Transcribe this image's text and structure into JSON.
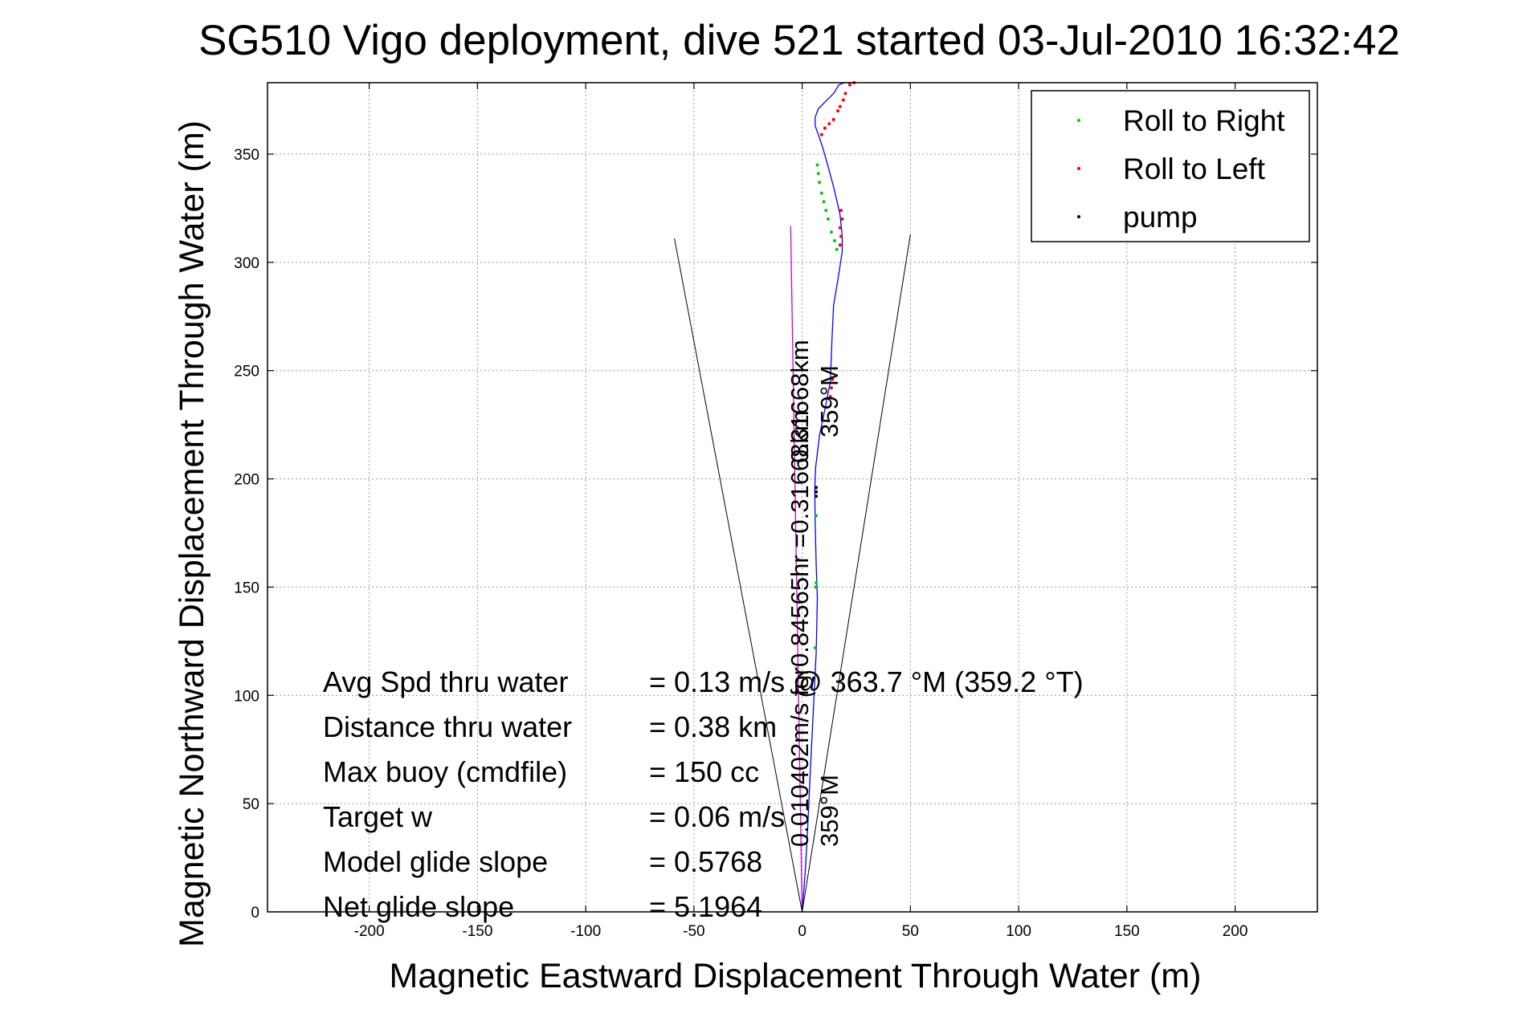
{
  "chart_data": {
    "type": "line",
    "title": "SG510 Vigo deployment, dive 521 started 03-Jul-2010 16:32:42",
    "xlabel": "Magnetic Eastward Displacement Through Water (m)",
    "ylabel": "Magnetic Northward Displacement Through Water (m)",
    "xlim": [
      -247,
      238
    ],
    "ylim": [
      0,
      383
    ],
    "x_ticks": [
      -200,
      -150,
      -100,
      -50,
      0,
      50,
      100,
      150,
      200
    ],
    "y_ticks": [
      0,
      50,
      100,
      150,
      200,
      250,
      300,
      350
    ],
    "grid": true,
    "legend_position": "top-right",
    "legend": [
      {
        "label": "Roll to Right",
        "color": "#00cc00"
      },
      {
        "label": "Roll to Left",
        "color": "#ff0000"
      },
      {
        "label": "pump",
        "color": "#000000"
      }
    ],
    "colors": {
      "track": "#0000ff",
      "mean_vector": "#cc00cc",
      "cone": "#000000",
      "grid": "#999999"
    },
    "series": [
      {
        "kind": "track",
        "x": [
          0,
          1.5,
          2.5,
          3.5,
          4.5,
          5.5,
          6.5,
          7,
          6.5,
          6,
          5.8,
          6.2,
          8,
          10.5,
          13,
          13.8,
          14.5,
          17,
          18.5,
          18.5,
          17.5,
          14.5,
          11.5,
          9.5,
          7.5,
          6,
          6,
          7.5,
          11.5,
          14.5,
          17,
          19.5,
          22,
          24
        ],
        "y": [
          0,
          20,
          38,
          60,
          80,
          100,
          120,
          145,
          160,
          180,
          195,
          205,
          220,
          232,
          245,
          265,
          280,
          295,
          305,
          312,
          322,
          335,
          346,
          353,
          359,
          363,
          367,
          371,
          375,
          378,
          382,
          387,
          390,
          392
        ]
      },
      {
        "kind": "mean_vector",
        "x": [
          0,
          -5.3
        ],
        "y": [
          0,
          316.7
        ]
      },
      {
        "kind": "cone_left",
        "x": [
          0,
          -59
        ],
        "y": [
          0,
          311
        ]
      },
      {
        "kind": "cone_right",
        "x": [
          0,
          50
        ],
        "y": [
          0,
          313
        ]
      },
      {
        "name": "Roll to Right",
        "x": [
          6,
          6.2,
          6.5,
          6.5,
          7,
          7.5,
          8,
          9,
          10,
          11,
          12,
          13.5,
          15,
          16
        ],
        "y": [
          122,
          150,
          152,
          183,
          345,
          341,
          337,
          332,
          328,
          324,
          320,
          314,
          310,
          306
        ]
      },
      {
        "name": "Roll to Left",
        "x": [
          13,
          13.5,
          14,
          17.5,
          18,
          17.5,
          18.5,
          18,
          9,
          10.5,
          12.5,
          14.5,
          16.5,
          17.5,
          19,
          20,
          22,
          24
        ],
        "y": [
          238,
          242,
          246,
          308,
          312,
          316,
          320,
          324,
          359,
          362,
          364,
          366,
          370,
          372,
          375,
          378,
          382,
          386
        ]
      },
      {
        "name": "pump",
        "x": [
          6.5,
          6.5,
          6.5
        ],
        "y": [
          192,
          194,
          196
        ]
      }
    ],
    "annotations": [
      {
        "text": "0.31668km",
        "rot": -90
      },
      {
        "text": "359°M",
        "rot": -90
      },
      {
        "text": "0.010402m/s for0.84565hr =0.31668km",
        "rot": -90
      },
      {
        "text": "359°M",
        "rot": -90
      }
    ],
    "stats": [
      {
        "label": "Avg Spd thru water",
        "value": "=  0.13 m/s @ 363.7 °M (359.2 °T)"
      },
      {
        "label": "Distance thru water",
        "value": "=  0.38 km"
      },
      {
        "label": "Max buoy (cmdfile)",
        "value": "= 150 cc"
      },
      {
        "label": "Target w",
        "value": "= 0.06 m/s"
      },
      {
        "label": "Model glide slope",
        "value": "= 0.5768"
      },
      {
        "label": "Net glide slope",
        "value": "= 5.1964"
      }
    ]
  }
}
